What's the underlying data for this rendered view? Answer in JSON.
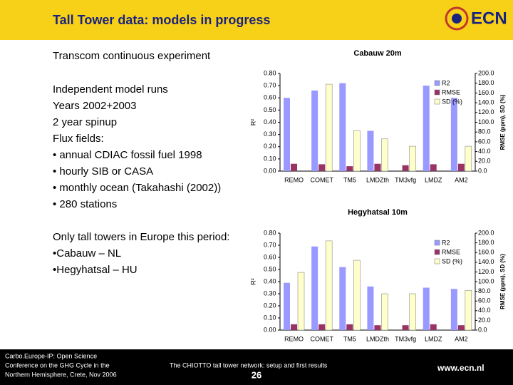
{
  "header": {
    "title": "Tall Tower data: models in progress",
    "logo": "ECN"
  },
  "left_text": {
    "heading": "Transcom continuous experiment",
    "lines": [
      "Independent model runs",
      "Years 2002+2003",
      "2 year spinup",
      "Flux fields:",
      "• annual CDIAC fossil fuel 1998",
      "• hourly SIB or CASA",
      "• monthly ocean (Takahashi (2002))",
      "• 280 stations"
    ],
    "lines2": [
      "Only tall towers in Europe  this period:",
      "•Cabauw – NL",
      "•Hegyhatsal – HU"
    ]
  },
  "charts": [
    {
      "type": "bar",
      "title": "Cabauw 20m",
      "y_label": "R²",
      "y2_label": "RMSE (ppm), SD (%)",
      "categories": [
        "REMO",
        "COMET",
        "TM5",
        "LMDZth",
        "TM3vfg",
        "LMDZ",
        "AM2"
      ],
      "series": [
        {
          "name": "R2",
          "color": "#9999ff",
          "values": [
            0.6,
            0.66,
            0.72,
            0.33,
            null,
            0.7,
            0.6
          ]
        },
        {
          "name": "RMSE",
          "color": "#993366",
          "axis": "y2",
          "values": [
            15,
            14,
            10,
            15,
            12,
            14,
            15
          ]
        },
        {
          "name": "SD (%)",
          "color": "#ffffcc",
          "axis": "y2",
          "values": [
            null,
            178,
            83,
            66,
            51,
            null,
            51
          ]
        }
      ],
      "ylim": [
        0,
        0.8
      ],
      "yticks": [
        {
          "value": 0,
          "label": "0.00"
        },
        {
          "value": 0.1,
          "label": "0.10"
        },
        {
          "value": 0.2,
          "label": "0.20"
        },
        {
          "value": 0.3,
          "label": "0.30"
        },
        {
          "value": 0.4,
          "label": "0.40"
        },
        {
          "value": 0.5,
          "label": "0.50"
        },
        {
          "value": 0.6,
          "label": "0.60"
        },
        {
          "value": 0.7,
          "label": "0.70"
        },
        {
          "value": 0.8,
          "label": "0.80"
        }
      ],
      "y2lim": [
        0,
        200
      ],
      "y2ticks": [
        {
          "value": 0,
          "label": "0.0"
        },
        {
          "value": 20,
          "label": "20.0"
        },
        {
          "value": 40,
          "label": "40.0"
        },
        {
          "value": 60,
          "label": "60.0"
        },
        {
          "value": 80,
          "label": "80.0"
        },
        {
          "value": 100,
          "label": "100.0"
        },
        {
          "value": 120,
          "label": "120.0"
        },
        {
          "value": 140,
          "label": "140.0"
        },
        {
          "value": 160,
          "label": "160.0"
        },
        {
          "value": 180,
          "label": "180.0"
        },
        {
          "value": 200,
          "label": "200.0"
        }
      ]
    },
    {
      "type": "bar",
      "title": "Hegyhatsal 10m",
      "y_label": "R²",
      "y2_label": "RMSE (ppm), SD (%)",
      "categories": [
        "REMO",
        "COMET",
        "TM5",
        "LMDZth",
        "TM3vfg",
        "LMDZ",
        "AM2"
      ],
      "series": [
        {
          "name": "R2",
          "color": "#9999ff",
          "values": [
            0.39,
            0.69,
            0.52,
            0.36,
            null,
            0.35,
            0.34
          ]
        },
        {
          "name": "RMSE",
          "color": "#993366",
          "axis": "y2",
          "values": [
            12,
            12,
            12,
            10,
            10,
            12,
            10
          ]
        },
        {
          "name": "SD (%)",
          "color": "#ffffcc",
          "axis": "y2",
          "values": [
            119,
            184,
            144,
            75,
            75,
            null,
            82
          ]
        }
      ],
      "ylim": [
        0,
        0.8
      ],
      "yticks": [
        {
          "value": 0,
          "label": "0.00"
        },
        {
          "value": 0.1,
          "label": "0.10"
        },
        {
          "value": 0.2,
          "label": "0.20"
        },
        {
          "value": 0.3,
          "label": "0.30"
        },
        {
          "value": 0.4,
          "label": "0.40"
        },
        {
          "value": 0.5,
          "label": "0.50"
        },
        {
          "value": 0.6,
          "label": "0.60"
        },
        {
          "value": 0.7,
          "label": "0.70"
        },
        {
          "value": 0.8,
          "label": "0.80"
        }
      ],
      "y2lim": [
        0,
        200
      ],
      "y2ticks": [
        {
          "value": 0,
          "label": "0.0"
        },
        {
          "value": 20,
          "label": "20.0"
        },
        {
          "value": 40,
          "label": "40.0"
        },
        {
          "value": 60,
          "label": "60.0"
        },
        {
          "value": 80,
          "label": "80.0"
        },
        {
          "value": 100,
          "label": "100.0"
        },
        {
          "value": 120,
          "label": "120.0"
        },
        {
          "value": 140,
          "label": "140.0"
        },
        {
          "value": 160,
          "label": "160.0"
        },
        {
          "value": 180,
          "label": "180.0"
        },
        {
          "value": 200,
          "label": "200.0"
        }
      ]
    }
  ],
  "footer": {
    "conference": [
      "Carbo.Europe-IP: Open Science",
      "Conference on the GHG Cycle in the",
      "Northern Hemisphere, Crete, Nov 2006"
    ],
    "talk": "The CHIOTTO tall tower network: setup and first results",
    "page": "26",
    "url": "www.ecn.nl"
  }
}
